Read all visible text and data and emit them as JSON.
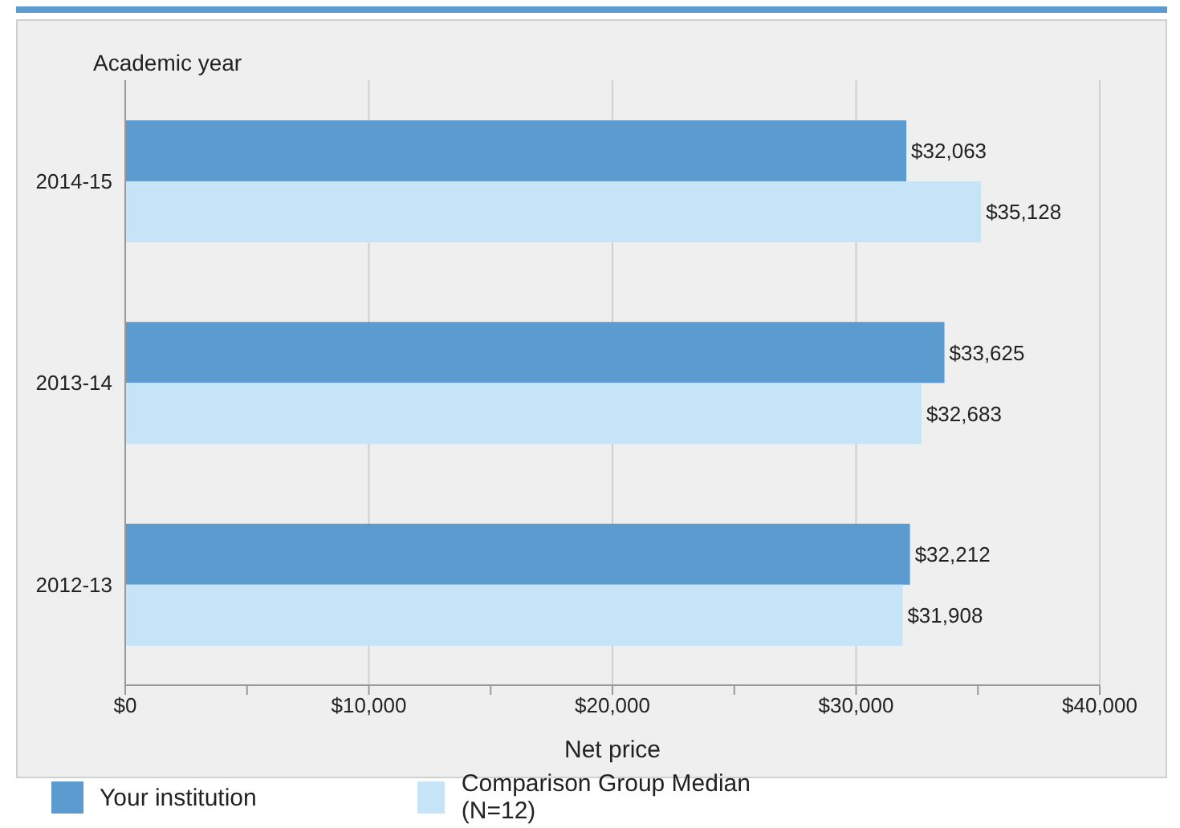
{
  "chart_data": {
    "type": "bar",
    "orientation": "horizontal",
    "ylabel": "Academic year",
    "xlabel": "Net price",
    "categories": [
      "2014-15",
      "2013-14",
      "2012-13"
    ],
    "series": [
      {
        "name": "Your institution",
        "color": "#5b9bd0",
        "values": [
          32063,
          33625,
          32212
        ],
        "value_labels": [
          "$32,063",
          "$33,625",
          "$32,212"
        ]
      },
      {
        "name": "Comparison Group Median (N=12)",
        "color": "#c6e4f7",
        "values": [
          35128,
          32683,
          31908
        ],
        "value_labels": [
          "$35,128",
          "$32,683",
          "$31,908"
        ]
      }
    ],
    "xlim": [
      0,
      40000
    ],
    "xticks": [
      {
        "value": 0,
        "label": "$0"
      },
      {
        "value": 5000,
        "label": null
      },
      {
        "value": 10000,
        "label": "$10,000"
      },
      {
        "value": 15000,
        "label": null
      },
      {
        "value": 20000,
        "label": "$20,000"
      },
      {
        "value": 25000,
        "label": null
      },
      {
        "value": 30000,
        "label": "$30,000"
      },
      {
        "value": 35000,
        "label": null
      },
      {
        "value": 40000,
        "label": "$40,000"
      }
    ],
    "grid": "x",
    "legend": "bottom"
  }
}
